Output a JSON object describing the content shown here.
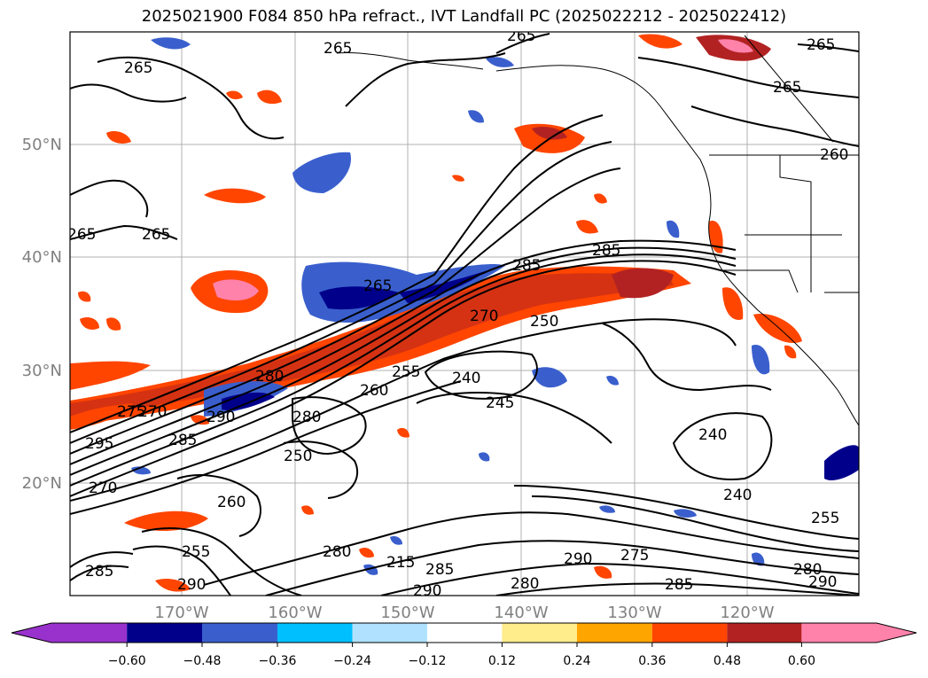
{
  "title": "2025021900 F084 850 hPa refract., IVT Landfall PC (2025022212 - 2025022412)",
  "lat_labels": [
    "50°N",
    "40°N",
    "30°N",
    "20°N"
  ],
  "lon_labels": [
    "170°W",
    "160°W",
    "150°W",
    "140°W",
    "130°W",
    "120°W"
  ],
  "contour_labels": [
    "265",
    "265",
    "265",
    "265",
    "265",
    "265",
    "265",
    "260",
    "285",
    "285",
    "280",
    "250",
    "270",
    "255",
    "260",
    "240",
    "245",
    "240",
    "240",
    "265",
    "270",
    "275",
    "280",
    "285",
    "290",
    "295",
    "270",
    "250",
    "260",
    "255",
    "280",
    "285",
    "290",
    "215",
    "285",
    "290",
    "290",
    "275",
    "280",
    "285",
    "255",
    "280",
    "290"
  ],
  "colorbar": {
    "tick_labels": [
      "−0.60",
      "−0.48",
      "−0.36",
      "−0.24",
      "−0.12",
      "0.12",
      "0.24",
      "0.36",
      "0.48",
      "0.60"
    ],
    "colors": [
      "#9932cc",
      "#00008b",
      "#3a5fcd",
      "#00bfff",
      "#b0e2ff",
      "#ffffff",
      "#ffec8b",
      "#ffa500",
      "#ff4500",
      "#b22222",
      "#ff82ab"
    ]
  }
}
